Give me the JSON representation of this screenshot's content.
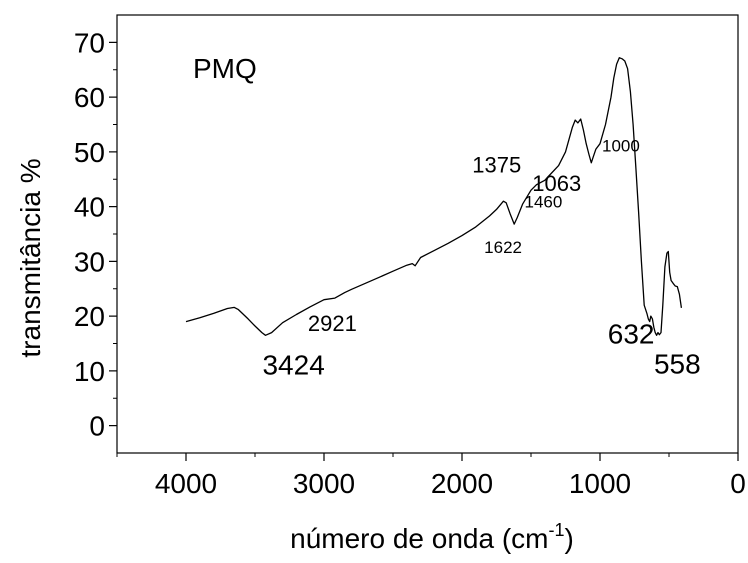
{
  "chart_data": {
    "type": "line",
    "title": "",
    "panel_label": "PMQ",
    "xlabel": "número de onda (cm",
    "xlabel_superscript": "-1",
    "xlabel_suffix": ")",
    "ylabel": "transmitância %",
    "xlim": [
      4500,
      0
    ],
    "ylim": [
      -5,
      75
    ],
    "x_ticks": [
      4000,
      3000,
      2000,
      1000,
      0
    ],
    "x_tick_labels": [
      "4000",
      "3000",
      "2000",
      "1000",
      "0"
    ],
    "y_ticks": [
      0,
      10,
      20,
      30,
      40,
      50,
      60,
      70
    ],
    "y_tick_labels": [
      "0",
      "10",
      "20",
      "30",
      "40",
      "50",
      "60",
      "70"
    ],
    "grid": false,
    "legend": "none",
    "line_color": "#000000",
    "series": [
      {
        "x": [
          4000,
          3900,
          3800,
          3700,
          3650,
          3620,
          3550,
          3500,
          3450,
          3424,
          3380,
          3300,
          3200,
          3100,
          3000,
          2921,
          2850,
          2800,
          2700,
          2600,
          2500,
          2400,
          2360,
          2340,
          2300,
          2200,
          2100,
          2000,
          1900,
          1800,
          1750,
          1700,
          1680,
          1650,
          1622,
          1600,
          1560,
          1500,
          1460,
          1400,
          1375,
          1300,
          1250,
          1200,
          1180,
          1160,
          1140,
          1120,
          1100,
          1080,
          1063,
          1050,
          1030,
          1000,
          960,
          920,
          900,
          880,
          860,
          840,
          820,
          800,
          780,
          760,
          740,
          720,
          700,
          680,
          660,
          650,
          640,
          632,
          620,
          610,
          600,
          590,
          580,
          570,
          558,
          545,
          530,
          515,
          505,
          495,
          485,
          470,
          455,
          440,
          425,
          410
        ],
        "y": [
          19,
          19.7,
          20.5,
          21.4,
          21.6,
          21.2,
          19.5,
          18.2,
          17,
          16.5,
          17,
          18.8,
          20.3,
          21.7,
          23,
          23.3,
          24.3,
          24.9,
          26,
          27.1,
          28.2,
          29.3,
          29.6,
          29.2,
          30.7,
          32,
          33.3,
          34.7,
          36.3,
          38.3,
          39.5,
          41,
          40.7,
          38.6,
          36.8,
          38,
          40.5,
          43,
          44,
          44.8,
          45.5,
          47.5,
          50,
          54.5,
          55.8,
          55.3,
          56,
          54,
          51.5,
          49.5,
          48,
          49,
          50.5,
          51.5,
          55,
          60,
          63.5,
          66,
          67.2,
          67,
          66.6,
          65.2,
          61,
          55,
          47,
          39,
          30,
          22,
          20.5,
          19.5,
          19,
          20,
          19.5,
          18,
          17,
          16.5,
          17,
          16.6,
          17,
          22,
          29,
          31.5,
          31.8,
          28,
          26.5,
          26,
          25.5,
          25.4,
          24,
          21.5
        ]
      }
    ],
    "annotations": [
      {
        "text": "3424",
        "x": 3424,
        "y": 16.5,
        "size": "big"
      },
      {
        "text": "2921",
        "x": 2921,
        "y": 23.3,
        "size": "mid"
      },
      {
        "text": "1622",
        "x": 1622,
        "y": 36.8,
        "size": "small"
      },
      {
        "text": "1460",
        "x": 1460,
        "y": 44,
        "size": "small"
      },
      {
        "text": "1375",
        "x": 1375,
        "y": 45.5,
        "size": "mid"
      },
      {
        "text": "1063",
        "x": 1063,
        "y": 48,
        "size": "mid"
      },
      {
        "text": "1000",
        "x": 1000,
        "y": 51.5,
        "size": "small"
      },
      {
        "text": "632",
        "x": 632,
        "y": 19,
        "size": "big"
      },
      {
        "text": "558",
        "x": 558,
        "y": 16.6,
        "size": "big"
      }
    ]
  }
}
